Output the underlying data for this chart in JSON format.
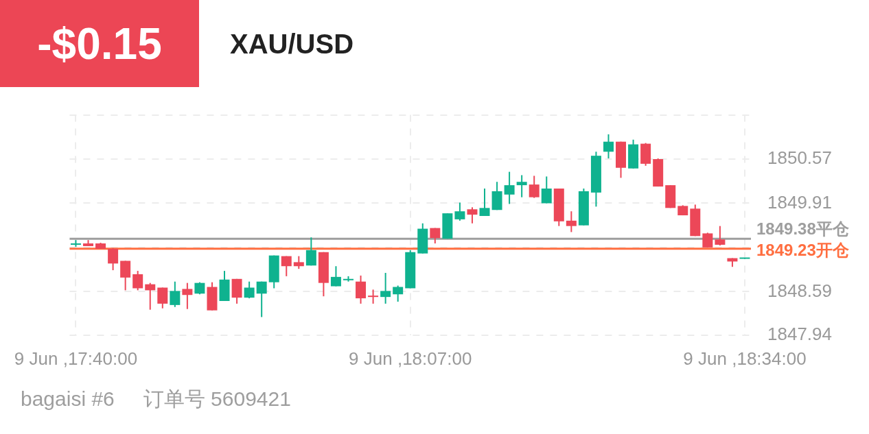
{
  "chart_data": {
    "type": "candlestick",
    "title": "XAU/USD",
    "annotations": [
      "-$0.15",
      "bagaisi #6",
      "订单号 5609421"
    ],
    "categories": [
      "9 Jun ,17:40:00",
      null,
      null,
      null,
      null,
      null,
      null,
      null,
      null,
      null,
      null,
      null,
      null,
      null,
      null,
      null,
      null,
      null,
      null,
      null,
      null,
      null,
      null,
      null,
      null,
      null,
      null,
      "9 Jun ,18:07:00",
      null,
      null,
      null,
      null,
      null,
      null,
      null,
      null,
      null,
      null,
      null,
      null,
      null,
      null,
      null,
      null,
      null,
      null,
      null,
      null,
      null,
      null,
      null,
      null,
      null,
      null,
      "9 Jun ,18:34:00"
    ],
    "ohlc": [
      [
        1849.28,
        1849.36,
        1849.26,
        1849.3
      ],
      [
        1849.31,
        1849.36,
        1849.27,
        1849.27
      ],
      [
        1849.31,
        1849.32,
        1849.23,
        1849.23
      ],
      [
        1849.23,
        1849.24,
        1848.91,
        1849.01
      ],
      [
        1849.05,
        1849.05,
        1848.61,
        1848.8
      ],
      [
        1848.85,
        1848.9,
        1848.61,
        1848.64
      ],
      [
        1848.7,
        1848.72,
        1848.32,
        1848.61
      ],
      [
        1848.65,
        1848.65,
        1848.34,
        1848.41
      ],
      [
        1848.39,
        1848.74,
        1848.36,
        1848.6
      ],
      [
        1848.63,
        1848.72,
        1848.33,
        1848.54
      ],
      [
        1848.56,
        1848.73,
        1848.55,
        1848.72
      ],
      [
        1848.66,
        1848.73,
        1848.31,
        1848.31
      ],
      [
        1848.45,
        1848.9,
        1848.45,
        1848.77
      ],
      [
        1848.78,
        1848.78,
        1848.41,
        1848.5
      ],
      [
        1848.5,
        1848.74,
        1848.49,
        1848.65
      ],
      [
        1848.56,
        1848.74,
        1848.21,
        1848.74
      ],
      [
        1848.73,
        1849.13,
        1848.64,
        1849.13
      ],
      [
        1849.12,
        1849.12,
        1848.82,
        1848.97
      ],
      [
        1849.03,
        1849.12,
        1848.93,
        1848.97
      ],
      [
        1848.98,
        1849.4,
        1848.98,
        1849.21
      ],
      [
        1849.18,
        1849.18,
        1848.52,
        1848.72
      ],
      [
        1848.67,
        1848.97,
        1848.67,
        1848.81
      ],
      [
        1848.76,
        1848.82,
        1848.74,
        1848.77
      ],
      [
        1848.74,
        1848.83,
        1848.41,
        1848.49
      ],
      [
        1848.52,
        1848.62,
        1848.41,
        1848.51
      ],
      [
        1848.51,
        1848.87,
        1848.41,
        1848.6
      ],
      [
        1848.55,
        1848.68,
        1848.44,
        1848.66
      ],
      [
        1848.64,
        1849.21,
        1848.64,
        1849.18
      ],
      [
        1849.16,
        1849.61,
        1849.16,
        1849.53
      ],
      [
        1849.54,
        1849.54,
        1849.31,
        1849.39
      ],
      [
        1849.38,
        1849.76,
        1849.38,
        1849.76
      ],
      [
        1849.67,
        1849.92,
        1849.65,
        1849.79
      ],
      [
        1849.82,
        1849.85,
        1849.61,
        1849.74
      ],
      [
        1849.72,
        1850.13,
        1849.72,
        1849.84
      ],
      [
        1849.81,
        1850.23,
        1849.81,
        1850.09
      ],
      [
        1850.04,
        1850.38,
        1849.9,
        1850.18
      ],
      [
        1850.18,
        1850.33,
        1850.0,
        1850.23
      ],
      [
        1850.19,
        1850.32,
        1849.99,
        1850.0
      ],
      [
        1849.91,
        1850.31,
        1849.91,
        1850.13
      ],
      [
        1850.13,
        1850.13,
        1849.57,
        1849.64
      ],
      [
        1849.65,
        1849.79,
        1849.48,
        1849.57
      ],
      [
        1849.58,
        1850.13,
        1849.58,
        1850.09
      ],
      [
        1850.07,
        1850.68,
        1849.86,
        1850.62
      ],
      [
        1850.68,
        1850.94,
        1850.58,
        1850.83
      ],
      [
        1850.83,
        1850.83,
        1850.29,
        1850.44
      ],
      [
        1850.43,
        1850.86,
        1850.43,
        1850.79
      ],
      [
        1850.8,
        1850.81,
        1850.47,
        1850.5
      ],
      [
        1850.57,
        1850.58,
        1850.16,
        1850.16
      ],
      [
        1850.18,
        1850.18,
        1849.84,
        1849.84
      ],
      [
        1849.87,
        1849.88,
        1849.73,
        1849.73
      ],
      [
        1849.83,
        1849.89,
        1849.42,
        1849.42
      ],
      [
        1849.46,
        1849.47,
        1849.25,
        1849.25
      ],
      [
        1849.37,
        1849.57,
        1849.28,
        1849.29
      ],
      [
        1849.09,
        1849.09,
        1848.96,
        1849.04
      ],
      [
        1849.09,
        1849.09,
        1849.09,
        1849.09
      ]
    ],
    "colors": [
      "#0fb28f",
      "#ec4758",
      "#ec4758",
      "#ec4758",
      "#ec4758",
      "#ec4758",
      "#ec4758",
      "#ec4758",
      "#0fb28f",
      "#ec4758",
      "#0fb28f",
      "#ec4758",
      "#0fb28f",
      "#ec4758",
      "#0fb28f",
      "#0fb28f",
      "#0fb28f",
      "#ec4758",
      "#ec4758",
      "#0fb28f",
      "#ec4758",
      "#0fb28f",
      "#0fb28f",
      "#ec4758",
      "#ec4758",
      "#0fb28f",
      "#0fb28f",
      "#0fb28f",
      "#0fb28f",
      "#ec4758",
      "#0fb28f",
      "#0fb28f",
      "#ec4758",
      "#0fb28f",
      "#0fb28f",
      "#0fb28f",
      "#0fb28f",
      "#ec4758",
      "#0fb28f",
      "#ec4758",
      "#ec4758",
      "#0fb28f",
      "#0fb28f",
      "#0fb28f",
      "#ec4758",
      "#0fb28f",
      "#ec4758",
      "#ec4758",
      "#ec4758",
      "#ec4758",
      "#ec4758",
      "#ec4758",
      "#ec4758",
      "#ec4758",
      "#0fb28f"
    ],
    "ylim": [
      1847.94,
      1851.23
    ],
    "yticks": [
      1847.94,
      1848.59,
      {
        "value": 1849.25,
        "label": null
      },
      1849.91,
      1850.57,
      {
        "value": 1851.23,
        "label": null
      }
    ],
    "ref_lines": [
      {
        "axis": "y",
        "value": 1849.38,
        "label": "1849.38平仓",
        "color": "#9e9e9e"
      },
      {
        "axis": "y",
        "value": 1849.23,
        "label": "1849.23开仓",
        "color": "#ff6e40"
      }
    ],
    "grid": true,
    "legend": false
  }
}
